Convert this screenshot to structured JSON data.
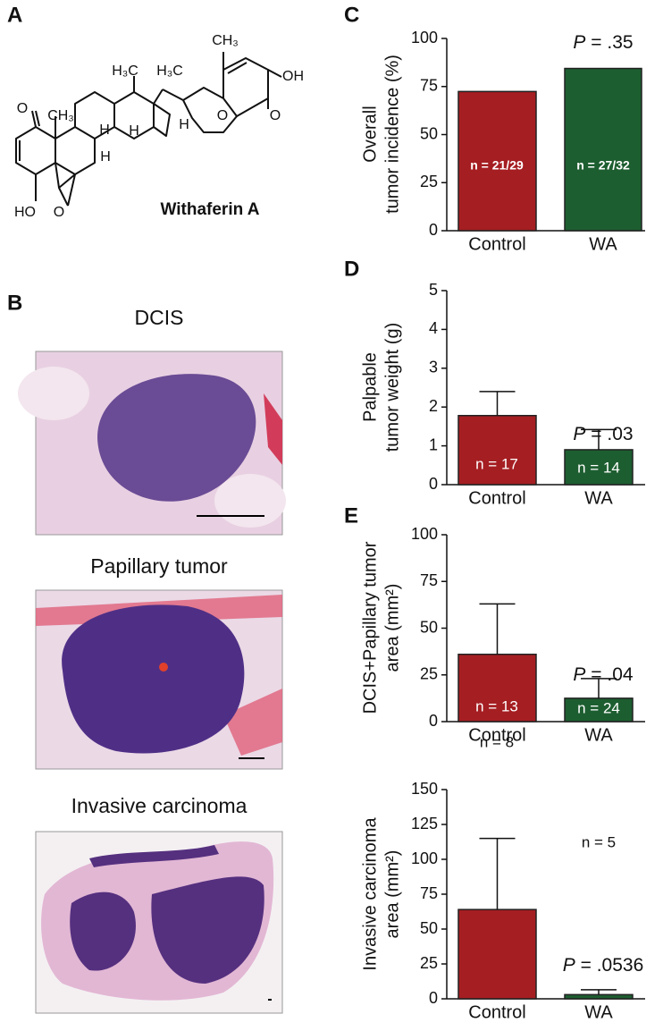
{
  "panels": [
    "A",
    "B",
    "C",
    "D",
    "E"
  ],
  "molecule": {
    "name": "Withaferin A",
    "labels": [
      "O",
      "CH₃",
      "H₃C",
      "H₃C",
      "CH₃",
      "OH",
      "O",
      "O",
      "H",
      "H",
      "H",
      "H",
      "HO",
      "O"
    ]
  },
  "histology": [
    {
      "title": "DCIS"
    },
    {
      "title": "Papillary tumor"
    },
    {
      "title": "Invasive carcinoma"
    }
  ],
  "chart_data": [
    {
      "type": "bar",
      "y_label": [
        "Overall",
        "tumor incidence (%)"
      ],
      "categories": [
        "Control",
        "WA"
      ],
      "values": [
        72.4,
        84.4
      ],
      "colors": [
        "#a51e22",
        "#1d5e30"
      ],
      "notes": [
        "n = 21/29",
        "n = 27/32"
      ],
      "p_label": [
        "P",
        "= .35"
      ],
      "ylim": [
        0,
        100
      ],
      "yticks": [
        0,
        25,
        50,
        75,
        100
      ]
    },
    {
      "type": "bar",
      "y_label": [
        "Palpable",
        "tumor weight (g)"
      ],
      "categories": [
        "Control",
        "WA"
      ],
      "values": [
        1.78,
        0.9
      ],
      "errors": [
        0.62,
        0.52
      ],
      "colors": [
        "#a51e22",
        "#1d5e30"
      ],
      "notes": [
        "n = 17",
        "n = 14"
      ],
      "p_label": [
        "P",
        "= .03"
      ],
      "ylim": [
        0,
        5
      ],
      "yticks": [
        0,
        1,
        2,
        3,
        4,
        5
      ]
    },
    {
      "type": "bar",
      "y_label": [
        "DCIS+Papillary tumor",
        "area (mm²)"
      ],
      "categories": [
        "Control",
        "WA"
      ],
      "values": [
        36,
        12.5
      ],
      "errors": [
        27,
        10.5
      ],
      "colors": [
        "#a51e22",
        "#1d5e30"
      ],
      "notes": [
        "n = 13",
        "n = 24"
      ],
      "p_label": [
        "P",
        "= .04"
      ],
      "ylim": [
        0,
        100
      ],
      "yticks": [
        0,
        25,
        50,
        75,
        100
      ]
    },
    {
      "type": "bar",
      "y_label": [
        "Invasive carcinoma",
        "area (mm²)"
      ],
      "categories": [
        "Control",
        "WA"
      ],
      "values": [
        64,
        3
      ],
      "errors": [
        51,
        3.5
      ],
      "colors": [
        "#a51e22",
        "#1d5e30"
      ],
      "notes": [
        "n = 8",
        "n = 5"
      ],
      "p_label": [
        "P",
        "= .0536"
      ],
      "ylim": [
        0,
        150
      ],
      "yticks": [
        0,
        25,
        50,
        75,
        100,
        125,
        150
      ]
    }
  ]
}
